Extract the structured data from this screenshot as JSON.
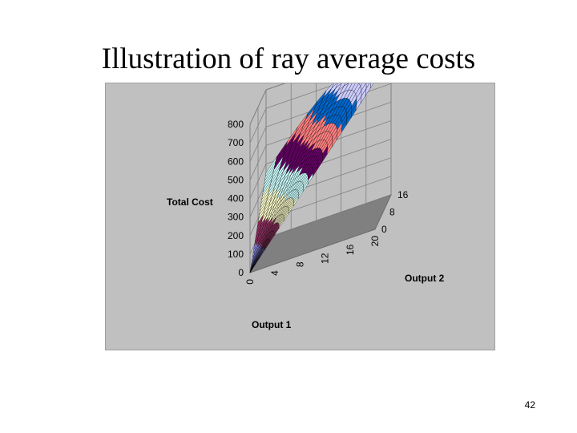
{
  "slide": {
    "title": "Illustration of ray average costs",
    "page_number": "42"
  },
  "chart_data": {
    "type": "surface-3d",
    "title": "",
    "zlabel": "Total Cost",
    "xlabel": "Output 1",
    "ylabel": "Output 2",
    "z_ticks": [
      "0",
      "100",
      "200",
      "300",
      "400",
      "500",
      "600",
      "700",
      "800"
    ],
    "x_ticks": [
      "0",
      "4",
      "8",
      "12",
      "16",
      "20"
    ],
    "y_ticks": [
      "0",
      "8",
      "16"
    ],
    "zlim": [
      0,
      800
    ],
    "xlim": [
      0,
      20
    ],
    "ylim": [
      0,
      16
    ],
    "band_colors": [
      "#9999ff",
      "#993366",
      "#ffffcc",
      "#ccffff",
      "#660066",
      "#ff8080",
      "#0066cc",
      "#ccccff"
    ],
    "background_color": "#c0c0c0",
    "floor_color": "#808080"
  }
}
